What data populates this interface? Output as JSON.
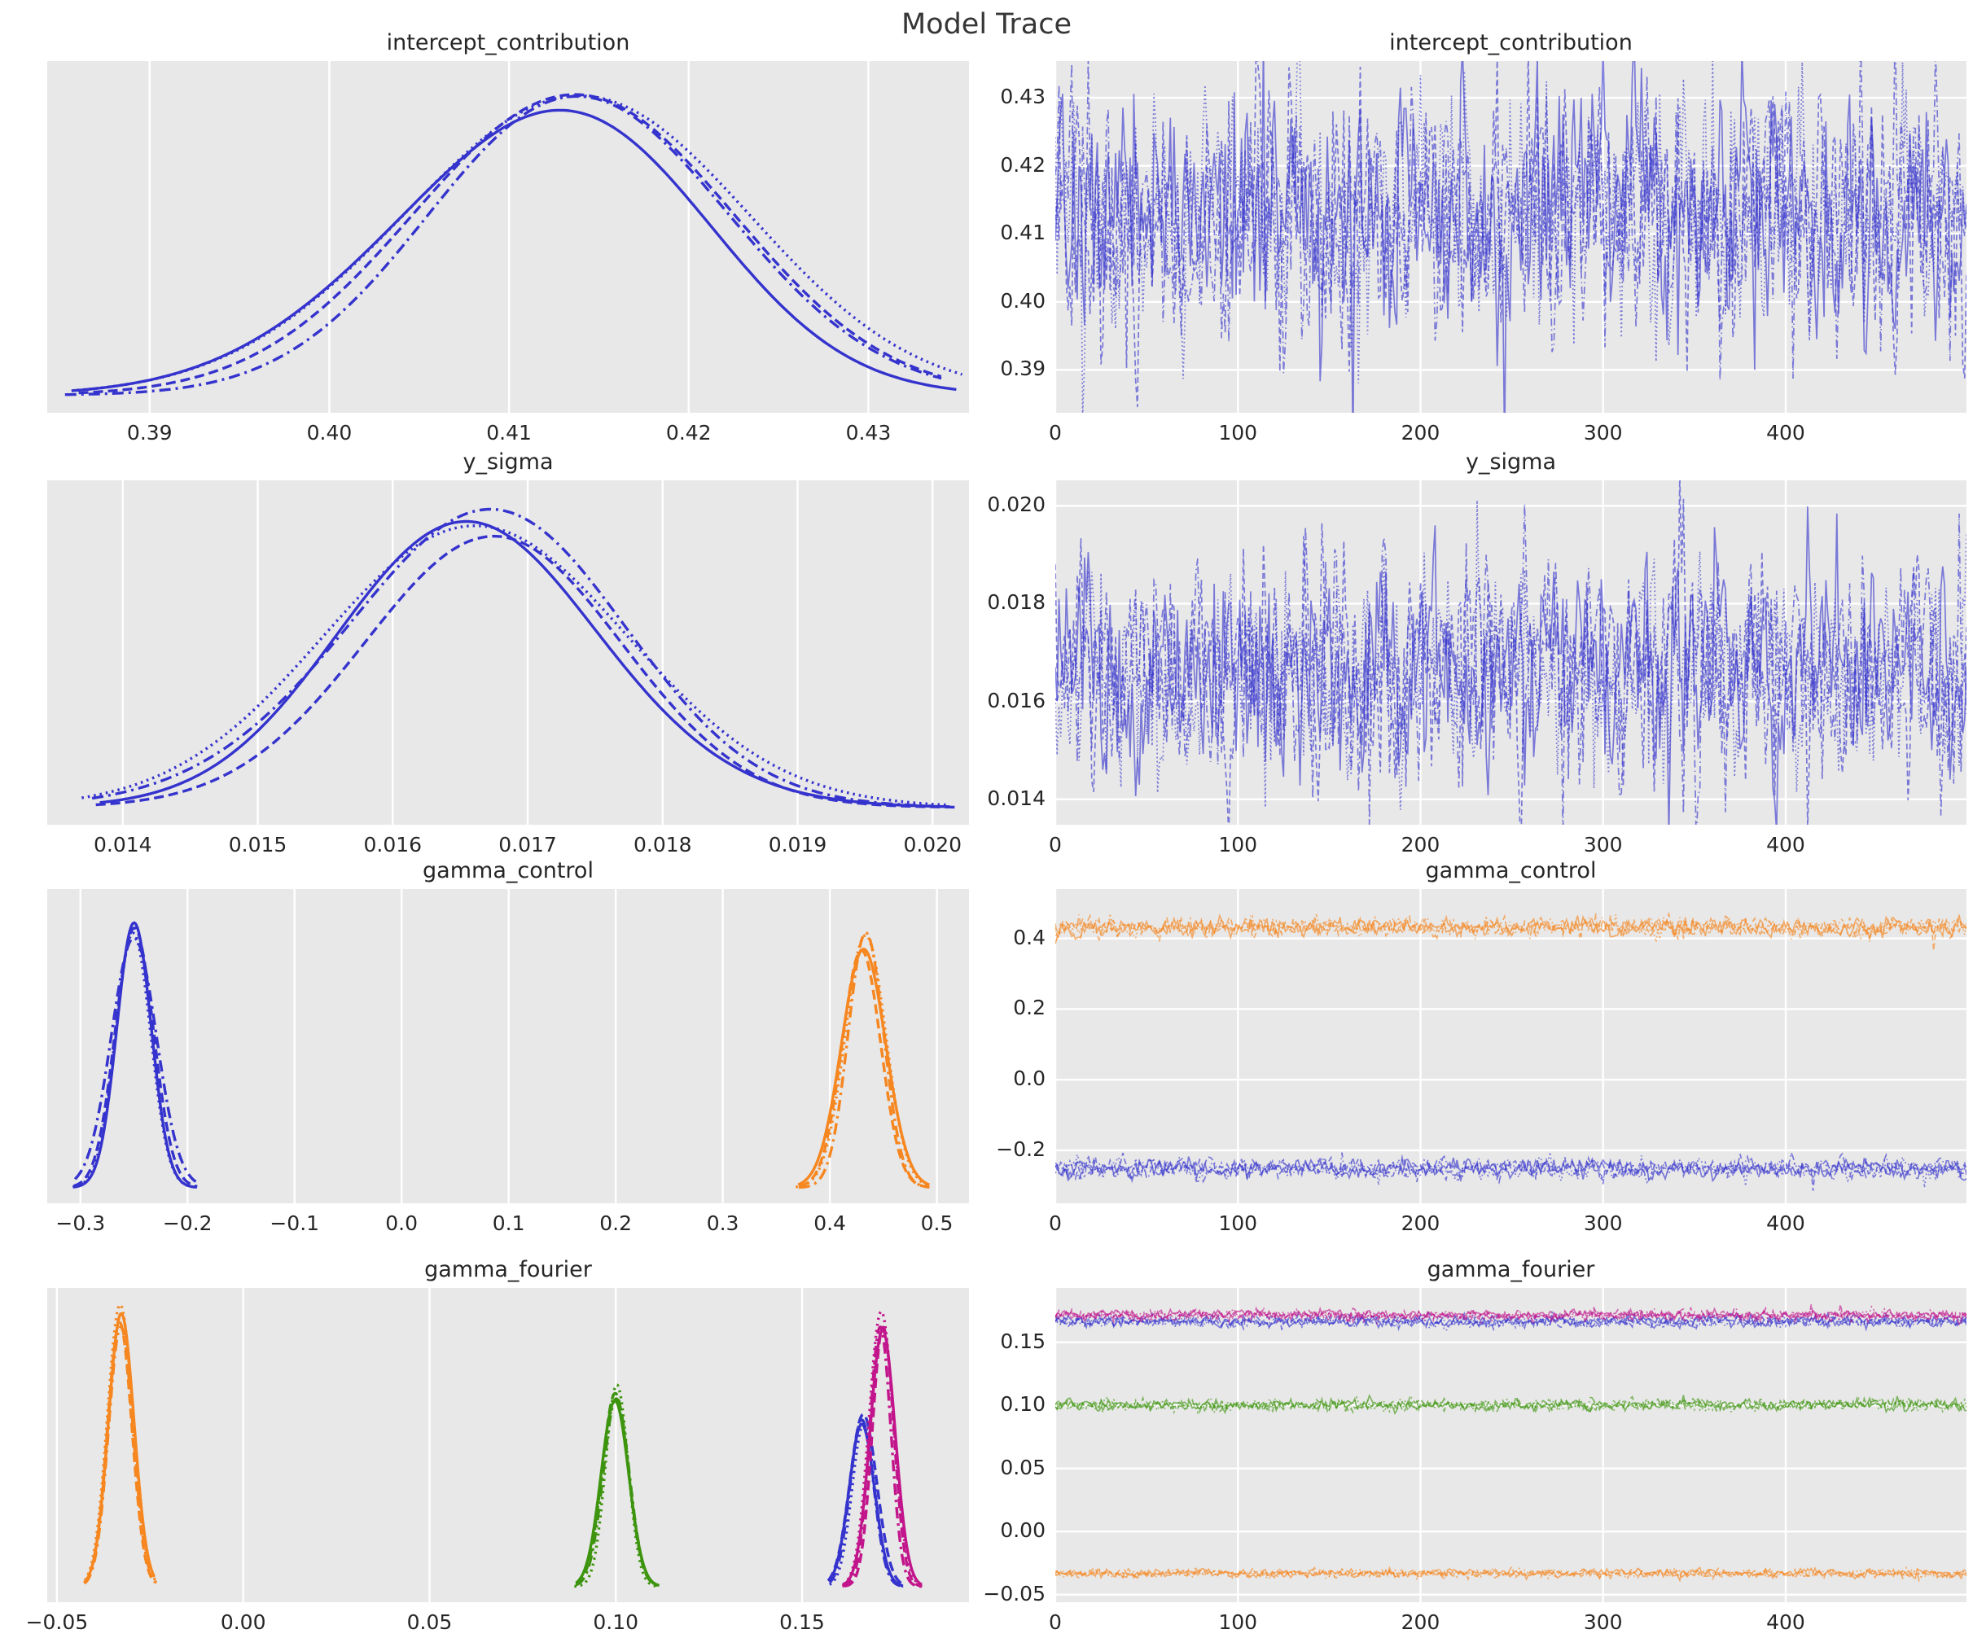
{
  "figure": {
    "title": "Model Trace",
    "background": "#ffffff",
    "panel_background": "#e8e8e8",
    "grid_color": "#ffffff",
    "text_color": "#262626",
    "chains": 4,
    "chain_styles": [
      "solid",
      "dashed",
      "dotted",
      "dashdot"
    ],
    "palette": {
      "blue": "#3533cd",
      "orange": "#f6861f",
      "green": "#3d940e",
      "magenta": "#c2158c"
    }
  },
  "chart_data": [
    {
      "name": "intercept_contribution_kde",
      "title": "intercept_contribution",
      "type": "kde",
      "x_range": [
        0.3843,
        0.4356
      ],
      "xticks": [
        {
          "v": 0.39,
          "t": "0.39"
        },
        {
          "v": 0.4,
          "t": "0.40"
        },
        {
          "v": 0.41,
          "t": "0.41"
        },
        {
          "v": 0.42,
          "t": "0.42"
        },
        {
          "v": 0.43,
          "t": "0.43"
        }
      ],
      "yticks": [],
      "series": [
        {
          "color": "#3533cd",
          "peak": 0.97,
          "span": [
            0.3862,
            0.4345
          ],
          "components": [
            {
              "mu": 0.4101,
              "sigma": 0.0082,
              "w": 0.48
            },
            {
              "mu": 0.4163,
              "sigma": 0.0076,
              "w": 0.52
            }
          ]
        }
      ]
    },
    {
      "name": "intercept_contribution_trace",
      "title": "intercept_contribution",
      "type": "trace",
      "x_range": [
        0,
        499
      ],
      "xticks": [
        {
          "v": 0,
          "t": "0"
        },
        {
          "v": 100,
          "t": "100"
        },
        {
          "v": 200,
          "t": "200"
        },
        {
          "v": 300,
          "t": "300"
        },
        {
          "v": 400,
          "t": "400"
        }
      ],
      "y_range": [
        0.3837,
        0.4354
      ],
      "yticks": [
        {
          "v": 0.39,
          "t": "0.39"
        },
        {
          "v": 0.4,
          "t": "0.40"
        },
        {
          "v": 0.41,
          "t": "0.41"
        },
        {
          "v": 0.42,
          "t": "0.42"
        },
        {
          "v": 0.43,
          "t": "0.43"
        }
      ],
      "n_draws": 500,
      "series": [
        {
          "color": "#3533cd",
          "level": 0.4128,
          "sd": 0.0082
        }
      ]
    },
    {
      "name": "y_sigma_kde",
      "title": "y_sigma",
      "type": "kde",
      "x_range": [
        0.01344,
        0.02027
      ],
      "xticks": [
        {
          "v": 0.014,
          "t": "0.014"
        },
        {
          "v": 0.015,
          "t": "0.015"
        },
        {
          "v": 0.016,
          "t": "0.016"
        },
        {
          "v": 0.017,
          "t": "0.017"
        },
        {
          "v": 0.018,
          "t": "0.018"
        },
        {
          "v": 0.019,
          "t": "0.019"
        },
        {
          "v": 0.02,
          "t": "0.020"
        }
      ],
      "yticks": [],
      "series": [
        {
          "color": "#3533cd",
          "peak": 0.96,
          "span": [
            0.0138,
            0.0201
          ],
          "components": [
            {
              "mu": 0.01648,
              "sigma": 0.00104,
              "w": 0.62
            },
            {
              "mu": 0.01685,
              "sigma": 0.00098,
              "w": 0.38
            }
          ]
        }
      ]
    },
    {
      "name": "y_sigma_trace",
      "title": "y_sigma",
      "type": "trace",
      "x_range": [
        0,
        499
      ],
      "xticks": [
        {
          "v": 0,
          "t": "0"
        },
        {
          "v": 100,
          "t": "100"
        },
        {
          "v": 200,
          "t": "200"
        },
        {
          "v": 300,
          "t": "300"
        },
        {
          "v": 400,
          "t": "400"
        }
      ],
      "y_range": [
        0.01348,
        0.02052
      ],
      "yticks": [
        {
          "v": 0.014,
          "t": "0.014"
        },
        {
          "v": 0.016,
          "t": "0.016"
        },
        {
          "v": 0.018,
          "t": "0.018"
        },
        {
          "v": 0.02,
          "t": "0.020"
        }
      ],
      "n_draws": 500,
      "series": [
        {
          "color": "#3533cd",
          "level": 0.01662,
          "sd": 0.00102
        }
      ]
    },
    {
      "name": "gamma_control_kde",
      "title": "gamma_control",
      "type": "kde",
      "x_range": [
        -0.331,
        0.53
      ],
      "xticks": [
        {
          "v": -0.3,
          "t": "−0.3"
        },
        {
          "v": -0.2,
          "t": "−0.2"
        },
        {
          "v": -0.1,
          "t": "−0.1"
        },
        {
          "v": 0.0,
          "t": "0.0"
        },
        {
          "v": 0.1,
          "t": "0.1"
        },
        {
          "v": 0.2,
          "t": "0.2"
        },
        {
          "v": 0.3,
          "t": "0.3"
        },
        {
          "v": 0.4,
          "t": "0.4"
        },
        {
          "v": 0.5,
          "t": "0.5"
        }
      ],
      "yticks": [],
      "series": [
        {
          "color": "#3533cd",
          "peak": 0.97,
          "span": [
            -0.306,
            -0.192
          ],
          "components": [
            {
              "mu": -0.251,
              "sigma": 0.0185,
              "w": 1
            }
          ]
        },
        {
          "color": "#f6861f",
          "peak": 0.92,
          "span": [
            0.37,
            0.491
          ],
          "components": [
            {
              "mu": 0.4315,
              "sigma": 0.0195,
              "w": 1
            }
          ]
        }
      ]
    },
    {
      "name": "gamma_control_trace",
      "title": "gamma_control",
      "type": "trace",
      "x_range": [
        0,
        499
      ],
      "xticks": [
        {
          "v": 0,
          "t": "0"
        },
        {
          "v": 100,
          "t": "100"
        },
        {
          "v": 200,
          "t": "200"
        },
        {
          "v": 300,
          "t": "300"
        },
        {
          "v": 400,
          "t": "400"
        }
      ],
      "y_range": [
        -0.35,
        0.54
      ],
      "yticks": [
        {
          "v": -0.2,
          "t": "−0.2"
        },
        {
          "v": 0.0,
          "t": "0.0"
        },
        {
          "v": 0.2,
          "t": "0.2"
        },
        {
          "v": 0.4,
          "t": "0.4"
        }
      ],
      "n_draws": 500,
      "series": [
        {
          "color": "#f6861f",
          "level": 0.4315,
          "sd": 0.0125
        },
        {
          "color": "#3533cd",
          "level": -0.251,
          "sd": 0.0125
        }
      ]
    },
    {
      "name": "gamma_fourier_kde",
      "title": "gamma_fourier",
      "type": "kde",
      "x_range": [
        -0.0526,
        0.1948
      ],
      "xticks": [
        {
          "v": -0.05,
          "t": "−0.05"
        },
        {
          "v": 0.0,
          "t": "0.00"
        },
        {
          "v": 0.05,
          "t": "0.05"
        },
        {
          "v": 0.1,
          "t": "0.10"
        },
        {
          "v": 0.15,
          "t": "0.15"
        }
      ],
      "yticks": [],
      "series": [
        {
          "color": "#f6861f",
          "peak": 0.99,
          "span": [
            -0.0428,
            -0.0236
          ],
          "components": [
            {
              "mu": -0.0332,
              "sigma": 0.0031,
              "w": 1
            }
          ]
        },
        {
          "color": "#3d940e",
          "peak": 0.7,
          "span": [
            0.0893,
            0.1114
          ],
          "components": [
            {
              "mu": 0.1002,
              "sigma": 0.0035,
              "w": 1
            }
          ]
        },
        {
          "color": "#3533cd",
          "peak": 0.62,
          "span": [
            0.1572,
            0.1772
          ],
          "components": [
            {
              "mu": 0.1665,
              "sigma": 0.0032,
              "w": 1
            }
          ]
        },
        {
          "color": "#c2158c",
          "peak": 1.0,
          "span": [
            0.1612,
            0.1822
          ],
          "components": [
            {
              "mu": 0.1714,
              "sigma": 0.0032,
              "w": 1
            }
          ]
        }
      ]
    },
    {
      "name": "gamma_fourier_trace",
      "title": "gamma_fourier",
      "type": "trace",
      "x_range": [
        0,
        499
      ],
      "xticks": [
        {
          "v": 0,
          "t": "0"
        },
        {
          "v": 100,
          "t": "100"
        },
        {
          "v": 200,
          "t": "200"
        },
        {
          "v": 300,
          "t": "300"
        },
        {
          "v": 400,
          "t": "400"
        }
      ],
      "y_range": [
        -0.056,
        0.193
      ],
      "yticks": [
        {
          "v": -0.05,
          "t": "−0.05"
        },
        {
          "v": 0.0,
          "t": "0.00"
        },
        {
          "v": 0.05,
          "t": "0.05"
        },
        {
          "v": 0.1,
          "t": "0.10"
        },
        {
          "v": 0.15,
          "t": "0.15"
        }
      ],
      "n_draws": 500,
      "series": [
        {
          "color": "#3533cd",
          "level": 0.1665,
          "sd": 0.0021
        },
        {
          "color": "#c2158c",
          "level": 0.1714,
          "sd": 0.0018
        },
        {
          "color": "#3d940e",
          "level": 0.1002,
          "sd": 0.002
        },
        {
          "color": "#f6861f",
          "level": -0.0332,
          "sd": 0.0015
        }
      ]
    }
  ]
}
